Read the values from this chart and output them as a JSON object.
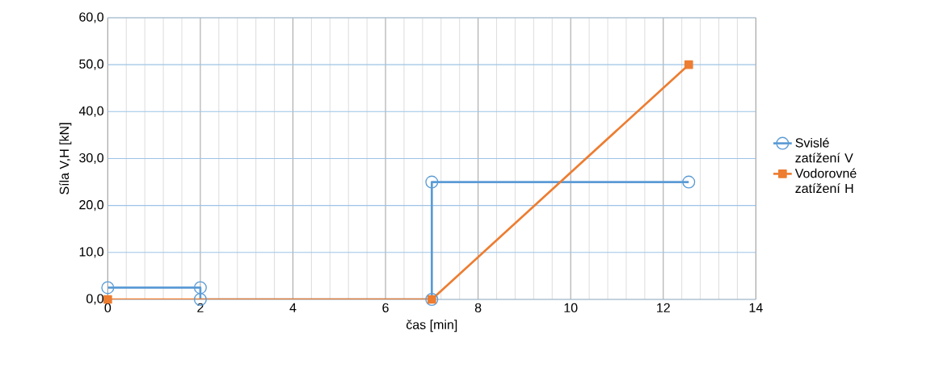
{
  "chart_data": {
    "type": "line",
    "xlabel": "čas [min]",
    "ylabel": "Síla V,H  [kN]",
    "xlim": [
      0,
      14
    ],
    "xticks": [
      0,
      2,
      4,
      6,
      8,
      10,
      12,
      14
    ],
    "ylim": [
      0,
      60
    ],
    "yticks": [
      {
        "value": 0,
        "label": "0,0"
      },
      {
        "value": 10,
        "label": "10,0"
      },
      {
        "value": 20,
        "label": "20,0"
      },
      {
        "value": 30,
        "label": "30,0"
      },
      {
        "value": 40,
        "label": "40,0"
      },
      {
        "value": 50,
        "label": "50,0"
      },
      {
        "value": 60,
        "label": "60,0"
      }
    ],
    "grid": true,
    "legend": "right",
    "line_style": "solid",
    "series": [
      {
        "name": "Svislé zatížení V",
        "color": "#5b9bd5",
        "marker": "circle",
        "x": [
          0,
          2,
          2,
          7,
          7,
          12.55
        ],
        "values": [
          2.5,
          2.5,
          0,
          0,
          25,
          25
        ]
      },
      {
        "name": "Vodorovné zatížení H",
        "color": "#ed7d31",
        "marker": "square",
        "x": [
          0,
          7,
          12.55
        ],
        "values": [
          0,
          0,
          50
        ]
      }
    ]
  }
}
